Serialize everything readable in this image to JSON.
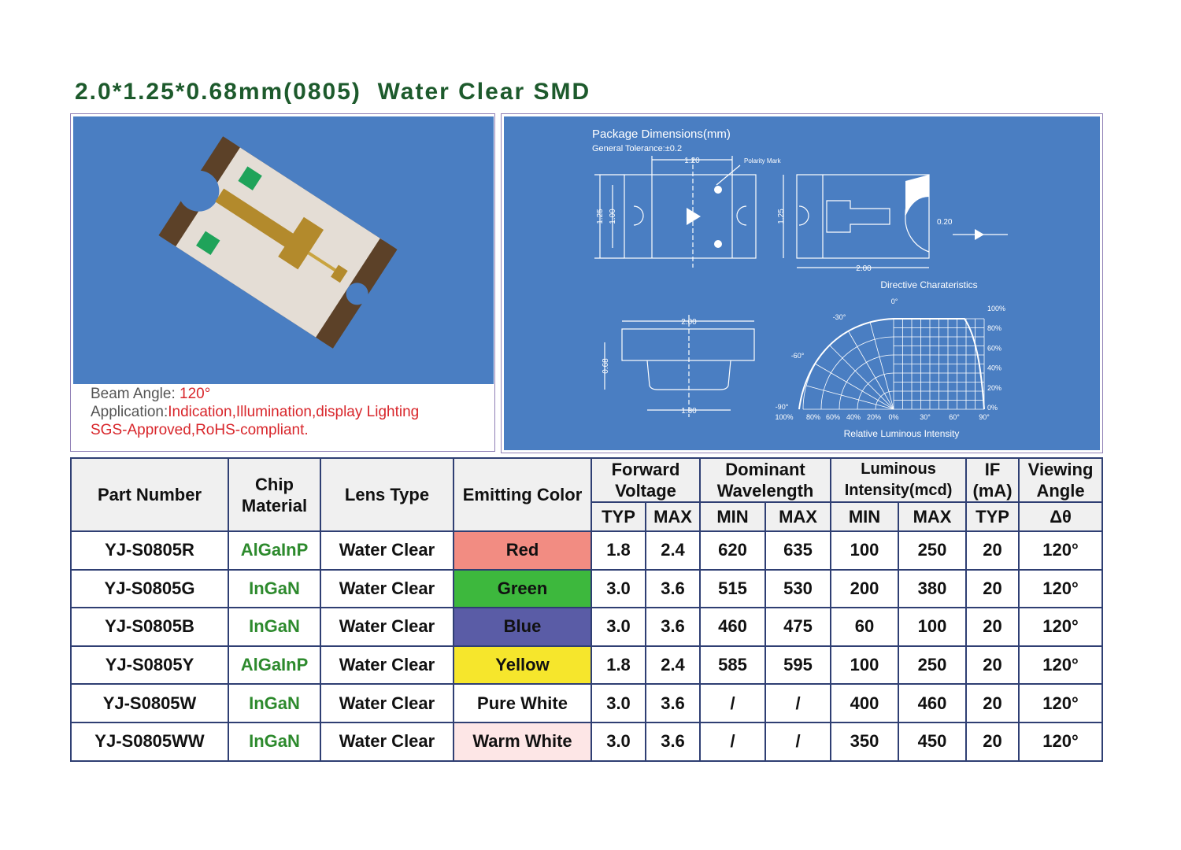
{
  "header": {
    "title": "2.0*1.25*0.68mm(0805)  Water Clear SMD"
  },
  "photo_panel": {
    "beam_label": "Beam Angle: ",
    "beam_value": "120°",
    "application_label": "Application:",
    "application_value": "Indication,Illumination,display Lighting",
    "compliance": "SGS-Approved,RoHS-compliant."
  },
  "diagram": {
    "title": "Package Dimensions(mm)",
    "tolerance": "General Tolerance:±0.2",
    "front_width": "1.20",
    "polarity": "Polarity Mark",
    "front_height_outer": "1.25",
    "front_height_inner": "1.00",
    "side_height": "1.25",
    "side_length": "2.00",
    "pad": "0.20",
    "directive_title": "Directive Charateristics",
    "profile_top": "2.00",
    "profile_bottom": "1.30",
    "profile_height": "0.68",
    "polar_angles": [
      "0°",
      "-30°",
      "-60°",
      "-90°"
    ],
    "bottom_axis": [
      "100%",
      "80%",
      "60%",
      "40%",
      "20%",
      "0%",
      "30°",
      "60°",
      "90°"
    ],
    "right_axis": [
      "100%",
      "80%",
      "60%",
      "40%",
      "20%",
      "0%"
    ],
    "axis_title": "Relative Luminous Intensity"
  },
  "table": {
    "headers": [
      "Part Number",
      "Chip Material",
      "Lens Type",
      "Emitting Color",
      "Forward Voltage",
      "Dominant Wavelength",
      "Luminous Intensity(mcd)",
      "IF (mA)",
      "Viewing Angle"
    ],
    "subheaders": [
      "TYP",
      "MAX",
      "MIN",
      "MAX",
      "MIN",
      "MAX",
      "TYP",
      "Δθ"
    ],
    "swatch_colors": [
      "#f28c82",
      "#3db83d",
      "#5a5ca6",
      "#f6e62c",
      "#ffffff",
      "#fde6e6"
    ],
    "rows": [
      [
        "YJ-S0805R",
        "AlGaInP",
        "Water Clear",
        "Red",
        "1.8",
        "2.4",
        "620",
        "635",
        "100",
        "250",
        "20",
        "120°"
      ],
      [
        "YJ-S0805G",
        "InGaN",
        "Water Clear",
        "Green",
        "3.0",
        "3.6",
        "515",
        "530",
        "200",
        "380",
        "20",
        "120°"
      ],
      [
        "YJ-S0805B",
        "InGaN",
        "Water Clear",
        "Blue",
        "3.0",
        "3.6",
        "460",
        "475",
        "60",
        "100",
        "20",
        "120°"
      ],
      [
        "YJ-S0805Y",
        "AlGaInP",
        "Water Clear",
        "Yellow",
        "1.8",
        "2.4",
        "585",
        "595",
        "100",
        "250",
        "20",
        "120°"
      ],
      [
        "YJ-S0805W",
        "InGaN",
        "Water Clear",
        "Pure White",
        "3.0",
        "3.6",
        "/",
        "/",
        "400",
        "460",
        "20",
        "120°"
      ],
      [
        "YJ-S0805WW",
        "InGaN",
        "Water Clear",
        "Warm White",
        "3.0",
        "3.6",
        "/",
        "/",
        "350",
        "450",
        "20",
        "120°"
      ]
    ]
  }
}
